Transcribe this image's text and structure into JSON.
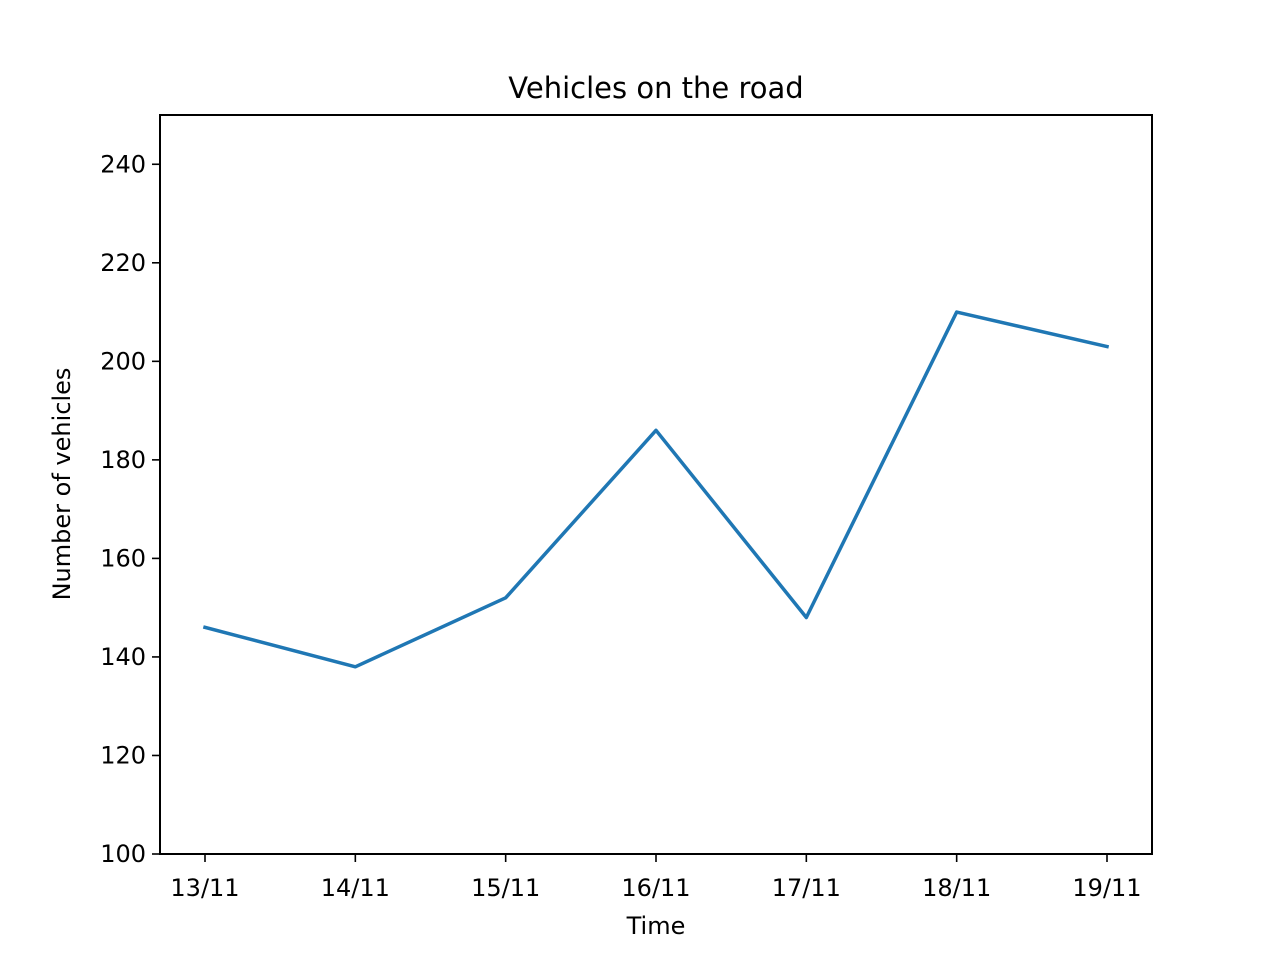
{
  "chart_data": {
    "type": "line",
    "title": "Vehicles on the road",
    "xlabel": "Time",
    "ylabel": "Number of vehicles",
    "categories": [
      "13/11",
      "14/11",
      "15/11",
      "16/11",
      "17/11",
      "18/11",
      "19/11"
    ],
    "series": [
      {
        "values": [
          146,
          138,
          152,
          186,
          148,
          210,
          203
        ],
        "color": "#1f77b4"
      }
    ],
    "ylim": [
      100,
      250
    ],
    "yticks": [
      100,
      120,
      140,
      160,
      180,
      200,
      220,
      240
    ],
    "grid": false,
    "legend": "none"
  }
}
